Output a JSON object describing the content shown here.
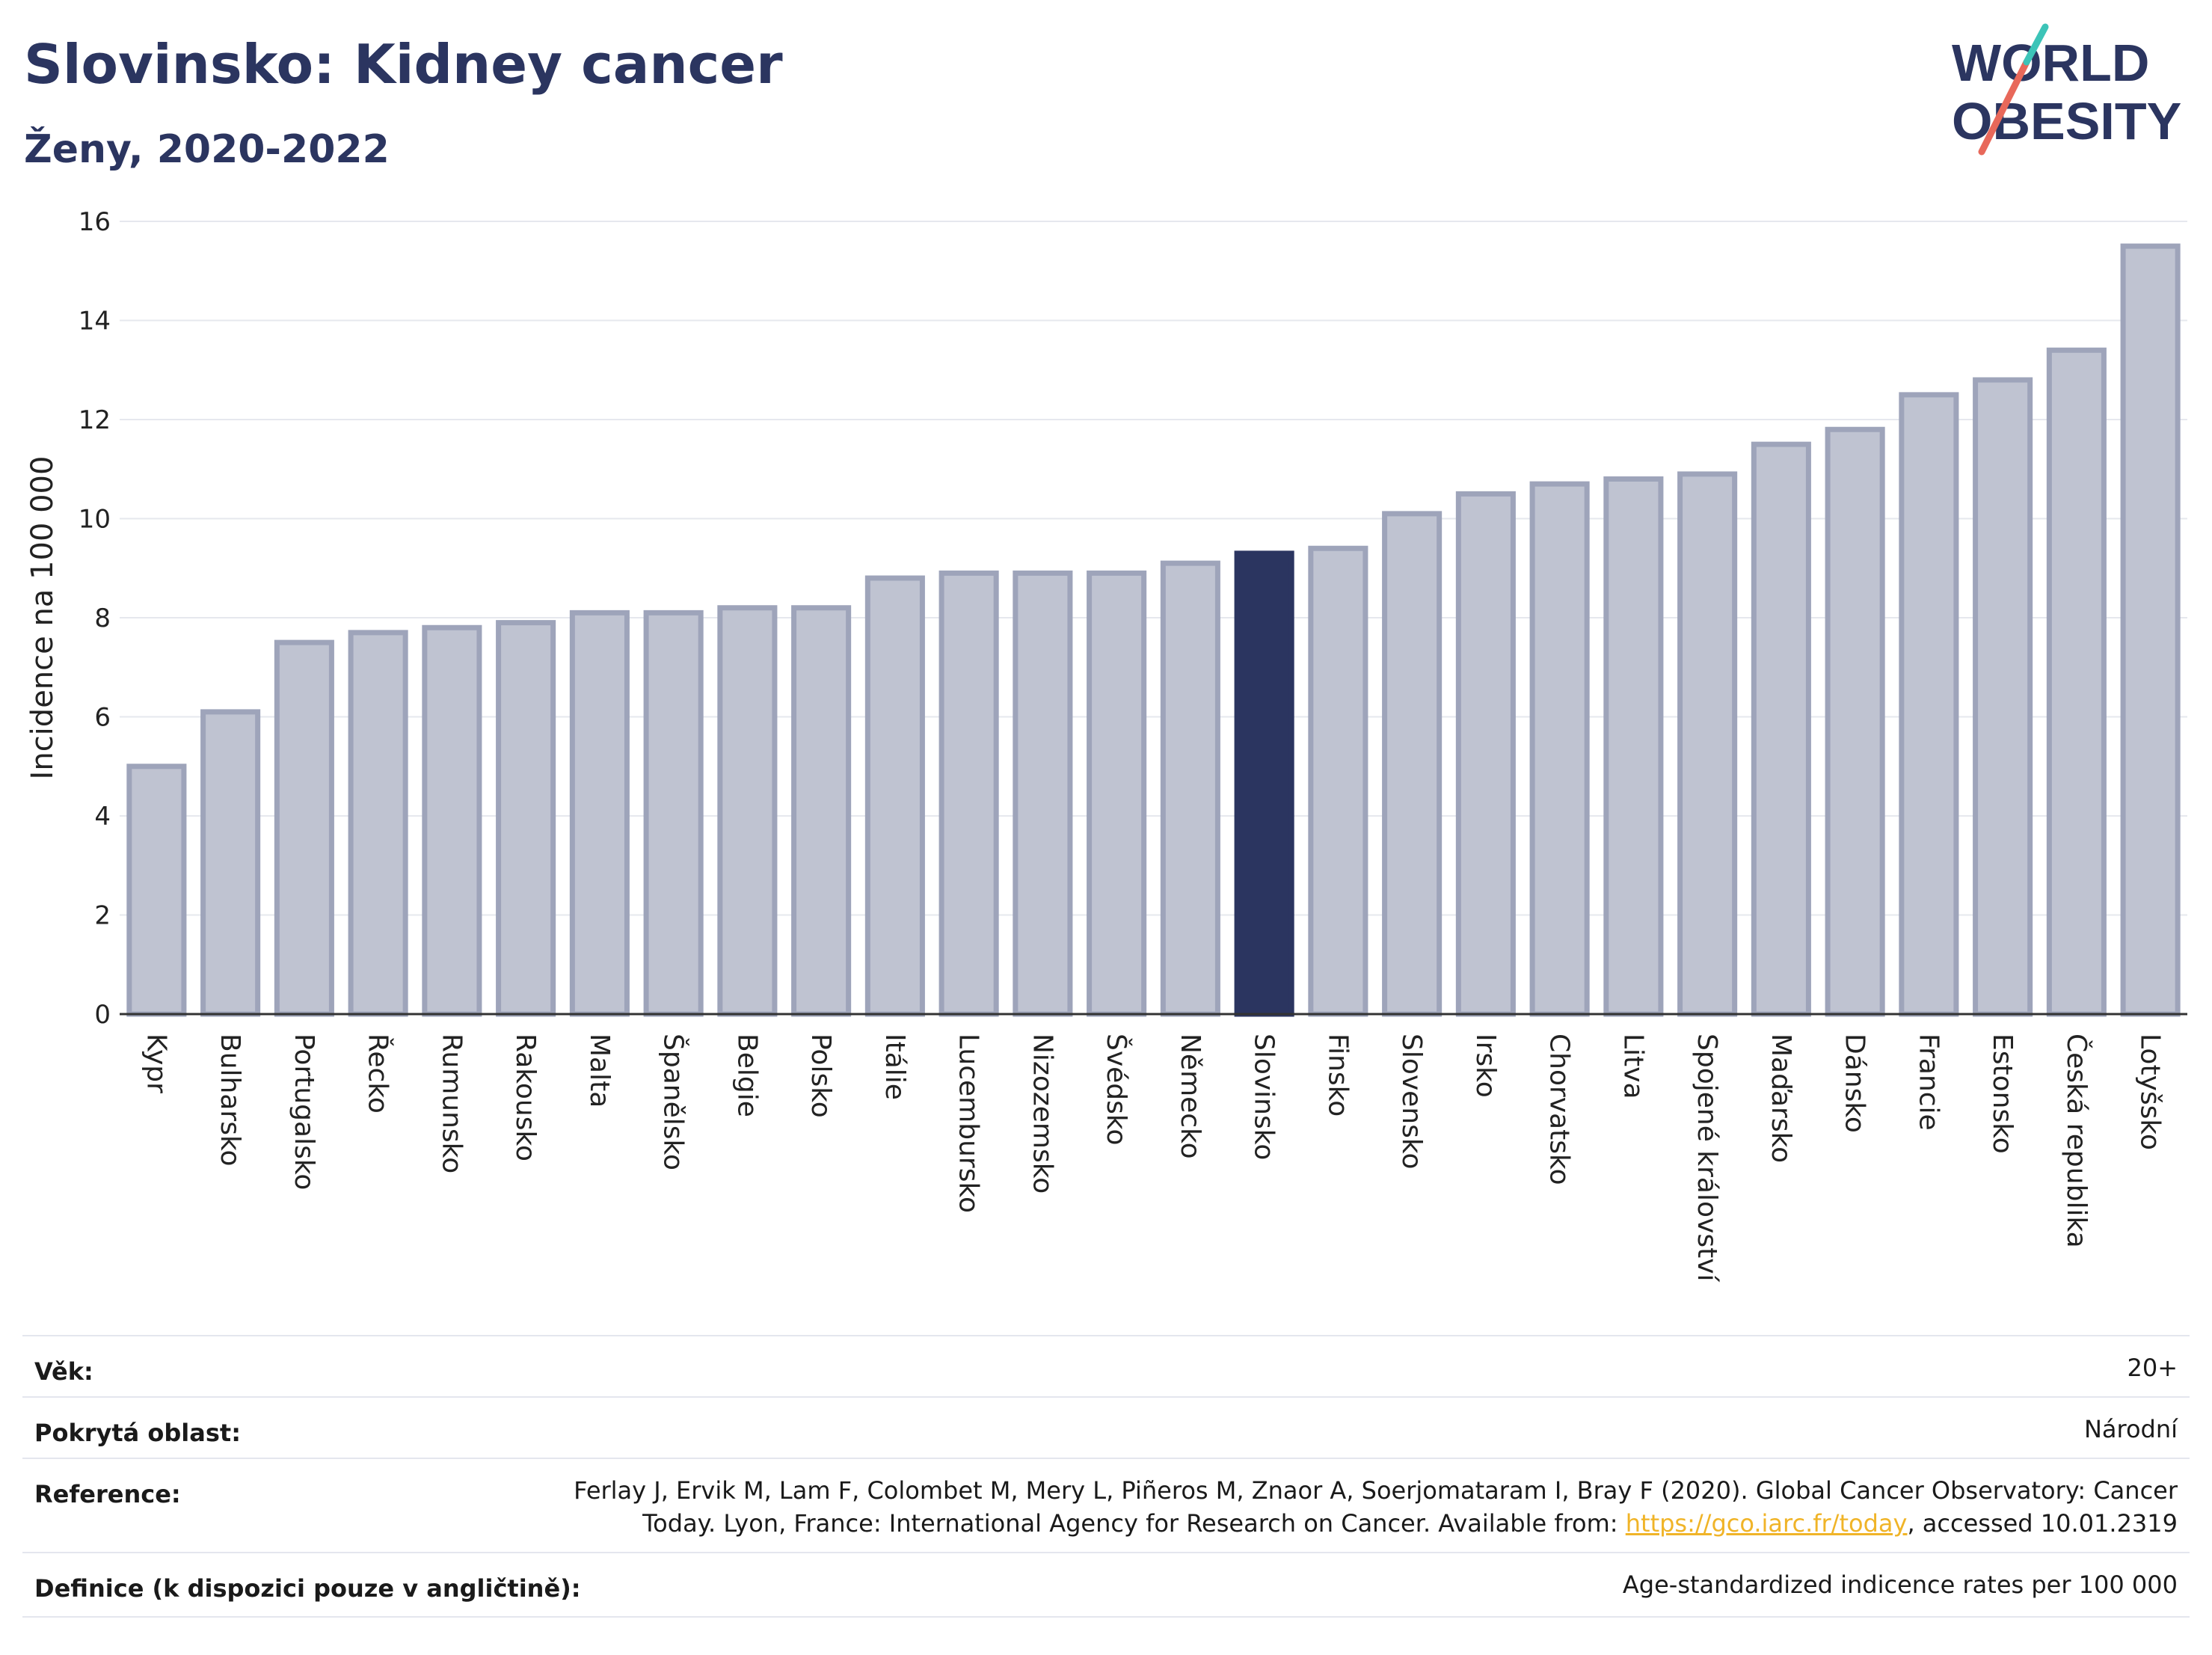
{
  "header": {
    "title": "Slovinsko: Kidney cancer",
    "subtitle": "Ženy, 2020-2022",
    "logo_text_line1": "WORLD",
    "logo_text_line2": "OBESITY"
  },
  "chart_data": {
    "type": "bar",
    "ylabel": "Incidence na 100 000",
    "xlabel": "",
    "ylim": [
      0,
      16
    ],
    "yticks": [
      0,
      2,
      4,
      6,
      8,
      10,
      12,
      14,
      16
    ],
    "grid": true,
    "highlight": "Slovinsko",
    "categories": [
      "Kypr",
      "Bulharsko",
      "Portugalsko",
      "Řecko",
      "Rumunsko",
      "Rakousko",
      "Malta",
      "Španělsko",
      "Belgie",
      "Polsko",
      "Itálie",
      "Lucembursko",
      "Nizozemsko",
      "Švédsko",
      "Německo",
      "Slovinsko",
      "Finsko",
      "Slovensko",
      "Irsko",
      "Chorvatsko",
      "Litva",
      "Spojené království",
      "Maďarsko",
      "Dánsko",
      "Francie",
      "Estonsko",
      "Česká republika",
      "Lotyšsko"
    ],
    "values": [
      5.0,
      6.1,
      7.5,
      7.7,
      7.8,
      7.9,
      8.1,
      8.1,
      8.2,
      8.2,
      8.8,
      8.9,
      8.9,
      8.9,
      9.1,
      9.3,
      9.4,
      10.1,
      10.5,
      10.7,
      10.8,
      10.9,
      11.5,
      11.8,
      12.5,
      12.8,
      13.4,
      15.5
    ],
    "colors": {
      "bar": "#bfc3d1",
      "bar_border": "#9ea4ba",
      "highlight": "#2b3560",
      "grid": "#e6e8ee",
      "axis": "#333333"
    }
  },
  "meta": {
    "age_label": "Věk:",
    "age_value": "20+",
    "area_label": "Pokrytá oblast:",
    "area_value": "Národní",
    "reference_label": "Reference:",
    "reference_line1": "Ferlay J, Ervik M, Lam F, Colombet M, Mery L, Piñeros M, Znaor A, Soerjomataram I, Bray F (2020). Global Cancer Observatory: Cancer",
    "reference_line2_pre": "Today. Lyon, France: International Agency for Research on Cancer. Available from: ",
    "reference_link": "https://gco.iarc.fr/today",
    "reference_line2_post": ", accessed 10.01.2319",
    "definition_label": "Definice (k dispozici pouze v angličtině):",
    "definition_value": "Age-standardized indicence rates per 100 000"
  }
}
